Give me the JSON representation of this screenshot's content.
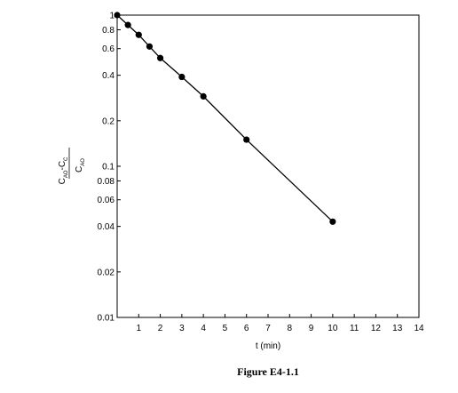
{
  "chart_data": {
    "type": "line",
    "xlabel": "t (min)",
    "ylabel": {
      "numerator": [
        {
          "t": "C",
          "sub": "AO"
        },
        {
          "t": "-C",
          "sub": "C"
        }
      ],
      "denominator": [
        {
          "t": "C",
          "sub": "AO"
        }
      ]
    },
    "xlim": [
      0,
      14
    ],
    "ylim": [
      0.01,
      1
    ],
    "yscale": "log",
    "xticks": [
      1,
      2,
      3,
      4,
      5,
      6,
      7,
      8,
      9,
      10,
      11,
      12,
      13,
      14
    ],
    "yticks": [
      {
        "v": 0.01,
        "label": "0.01"
      },
      {
        "v": 0.02,
        "label": "0.02"
      },
      {
        "v": 0.04,
        "label": "0.04"
      },
      {
        "v": 0.06,
        "label": "0.06"
      },
      {
        "v": 0.08,
        "label": "0.08"
      },
      {
        "v": 0.1,
        "label": "0.1"
      },
      {
        "v": 0.2,
        "label": "0.2"
      },
      {
        "v": 0.4,
        "label": "0.4"
      },
      {
        "v": 0.6,
        "label": "0.6"
      },
      {
        "v": 0.8,
        "label": "0.8"
      },
      {
        "v": 1,
        "label": "1"
      }
    ],
    "series": [
      {
        "x": [
          0,
          0.5,
          1,
          1.5,
          2,
          3,
          4,
          6,
          10
        ],
        "y": [
          1.0,
          0.86,
          0.74,
          0.62,
          0.52,
          0.39,
          0.29,
          0.15,
          0.043
        ]
      }
    ],
    "grid": false,
    "caption": "Figure E4-1.1"
  }
}
